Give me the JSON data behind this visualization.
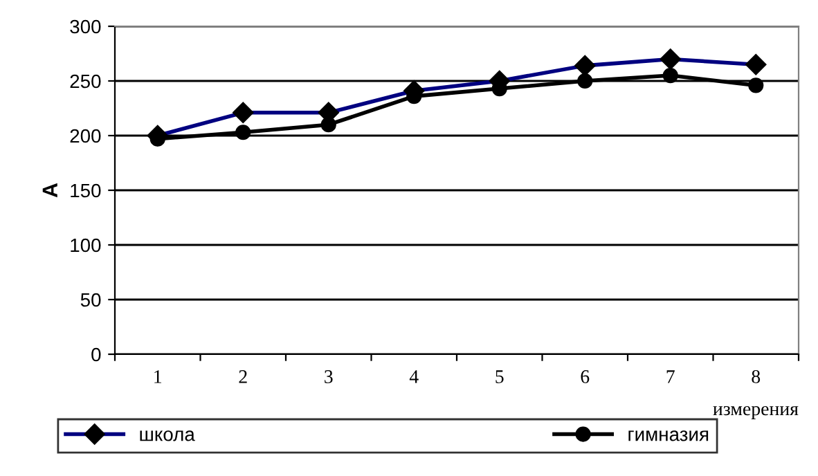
{
  "chart_data": {
    "type": "line",
    "ylabel": "А",
    "xlabel": "измерения",
    "categories": [
      "1",
      "2",
      "3",
      "4",
      "5",
      "6",
      "7",
      "8"
    ],
    "series": [
      {
        "name": "школа",
        "color": "#000080",
        "marker": "diamond",
        "values": [
          200,
          221,
          221,
          241,
          250,
          264,
          270,
          265
        ]
      },
      {
        "name": "гимназия",
        "color": "#000000",
        "marker": "circle",
        "values": [
          197,
          203,
          210,
          236,
          243,
          250,
          255,
          246
        ]
      }
    ],
    "ylim": [
      0,
      300
    ],
    "yticks": [
      0,
      50,
      100,
      150,
      200,
      250,
      300
    ],
    "grid": "y",
    "legend": "bottom",
    "line_style": "solid"
  }
}
